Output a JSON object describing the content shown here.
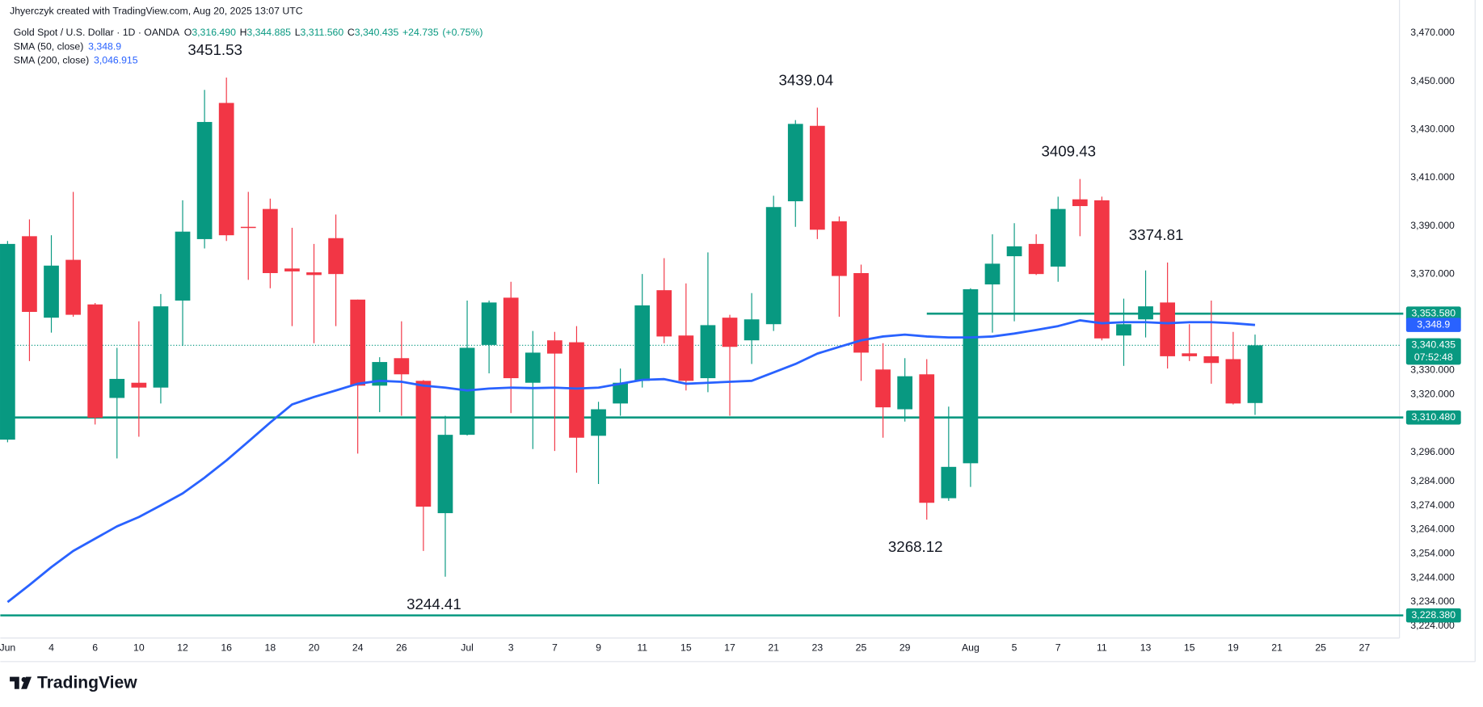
{
  "chart_data": {
    "type": "candlestick",
    "author_line": "Jhyerczyk created with TradingView.com, Aug 20, 2025 13:07 UTC",
    "title": "Gold Spot / U.S. Dollar · 1D · OANDA",
    "brand": "TradingView",
    "ohlc_legend": [
      {
        "key": "O",
        "value": 3316.49,
        "label": "3,316.490"
      },
      {
        "key": "H",
        "value": 3344.885,
        "label": "3,344.885"
      },
      {
        "key": "L",
        "value": 3311.56,
        "label": "3,311.560"
      },
      {
        "key": "C",
        "value": 3340.435,
        "label": "3,340.435"
      }
    ],
    "change": {
      "value": 24.735,
      "label": "+24.735"
    },
    "change_pct": {
      "value": 0.75,
      "label": "(+0.75%)"
    },
    "up_color": "#089981",
    "down_color": "#f23645",
    "categories": [
      "Jun",
      null,
      "4",
      null,
      "6",
      null,
      "10",
      null,
      "12",
      null,
      "16",
      null,
      "18",
      null,
      "20",
      null,
      "24",
      null,
      "26",
      null,
      null,
      "Jul",
      null,
      "3",
      null,
      "7",
      null,
      "9",
      null,
      "11",
      null,
      "15",
      null,
      "17",
      null,
      "21",
      null,
      "23",
      null,
      "25",
      null,
      "29",
      null,
      null,
      "Aug",
      null,
      "5",
      null,
      "7",
      null,
      "11",
      null,
      "13",
      null,
      "15",
      null,
      "19",
      null,
      "21",
      null,
      "25",
      null,
      "27",
      null
    ],
    "open": [
      3301.3,
      3385.7,
      3351.9,
      3375.9,
      3357.4,
      3318.6,
      3324.9,
      3322.9,
      3359,
      3384.5,
      3441,
      3389.6,
      3397,
      3372.3,
      3370.7,
      3384.9,
      3359.4,
      3323.7,
      3335.1,
      3325.7,
      3270.8,
      3303.3,
      3340.6,
      3360.2,
      3324.9,
      3342.5,
      3341.7,
      3302.9,
      3316.3,
      3325.7,
      3363.3,
      3344.5,
      3326.8,
      3351.9,
      3342.5,
      3349.2,
      3400.2,
      3431.5,
      3391.9,
      3370.4,
      3330.4,
      3313.9,
      3328.4,
      3277,
      3291.5,
      3365.7,
      3377.4,
      3382.5,
      3373.1,
      3401,
      3400.6,
      3344.5,
      3351.2,
      3358.2,
      3337.1,
      3335.9,
      3334.7,
      3316.49,
      null,
      null,
      null,
      null,
      null,
      null
    ],
    "high": [
      3383.7,
      3392.7,
      3386.1,
      3404.1,
      3358,
      3339.4,
      3350.4,
      3361.7,
      3400.6,
      3446.4,
      3451.53,
      3404.1,
      3401.3,
      3389.2,
      3382.5,
      3394.7,
      3359.4,
      3335.5,
      3350.4,
      3326,
      3311.2,
      3359,
      3359,
      3366.8,
      3346.4,
      3346,
      3348.4,
      3317,
      3330.8,
      3370,
      3376.6,
      3366.1,
      3379,
      3353.1,
      3362.1,
      3402.5,
      3433.9,
      3439.04,
      3393.9,
      3373.9,
      3341.3,
      3335.1,
      3334.7,
      3315,
      3364.1,
      3386.5,
      3391.1,
      3386.5,
      3402.1,
      3409.43,
      3402.1,
      3359.8,
      3371.5,
      3374.81,
      3349.2,
      3359,
      3346,
      3344.885,
      null,
      null,
      null,
      null,
      null,
      null
    ],
    "low": [
      3300.2,
      3333.9,
      3345.7,
      3352.3,
      3307.6,
      3293.5,
      3302.5,
      3316.3,
      3340.2,
      3380.6,
      3383.7,
      3367.6,
      3364.1,
      3348.4,
      3341.3,
      3348.4,
      3295.5,
      3312.7,
      3311.2,
      3255.1,
      3244.41,
      3303,
      3328.8,
      3312.3,
      3297.4,
      3296.6,
      3287.6,
      3282.9,
      3311.2,
      3322.9,
      3341.3,
      3321.7,
      3321,
      3311.2,
      3332.7,
      3346.4,
      3389.6,
      3384.5,
      3352.3,
      3325.7,
      3302.1,
      3308.8,
      3268.12,
      3275.9,
      3281.7,
      3345.7,
      3350.4,
      3369.6,
      3366.8,
      3385.7,
      3342.5,
      3331.9,
      3343.7,
      3330.8,
      3333.9,
      3324.5,
      3315.9,
      3311.56,
      null,
      null,
      null,
      null,
      null,
      null
    ],
    "close": [
      3382.5,
      3354.3,
      3373.5,
      3353.1,
      3310.4,
      3326.5,
      3322.9,
      3356.6,
      3387.6,
      3433.1,
      3386.1,
      3389.1,
      3370.4,
      3371.1,
      3369.6,
      3370,
      3323.7,
      3333.5,
      3328.4,
      3273.5,
      3303.3,
      3339.4,
      3358.2,
      3326.8,
      3337.4,
      3337,
      3302.1,
      3313.9,
      3324.9,
      3357,
      3344.1,
      3325.7,
      3348.8,
      3339.8,
      3351.2,
      3397.8,
      3432.3,
      3388.4,
      3369.2,
      3337.4,
      3314.7,
      3327.6,
      3275.1,
      3290,
      3363.7,
      3374.3,
      3381.5,
      3370,
      3397,
      3398.2,
      3343.3,
      3349.2,
      3356.6,
      3335.9,
      3335.9,
      3333.1,
      3316.3,
      3340.435,
      null,
      null,
      null,
      null,
      null,
      null
    ],
    "series": [
      {
        "name": "SMA (50, close)",
        "color": "#2962ff",
        "last": {
          "value": 3348.9,
          "label": "3,348.9"
        },
        "values": [
          3233.9,
          3241,
          3248.4,
          3255.1,
          3260.2,
          3265.3,
          3269.2,
          3274,
          3279,
          3285.5,
          3292.7,
          3300.5,
          3308.4,
          3315.9,
          3319,
          3321.7,
          3324.5,
          3325.7,
          3325.3,
          3323.7,
          3322.9,
          3321.7,
          3322.5,
          3322.9,
          3322.7,
          3322.9,
          3322.5,
          3322.9,
          3324.5,
          3326.1,
          3326.4,
          3324.5,
          3324.9,
          3325.3,
          3325.7,
          3329.2,
          3332.7,
          3337,
          3339.8,
          3342.5,
          3344.1,
          3344.9,
          3344.1,
          3343.7,
          3343.7,
          3344.1,
          3345.3,
          3346.8,
          3348.4,
          3350.8,
          3349.6,
          3350,
          3350,
          3349.6,
          3350,
          3350,
          3349.6,
          3348.9,
          null,
          null,
          null,
          null,
          null,
          null
        ]
      },
      {
        "name": "SMA (200, close)",
        "color": "#2962ff",
        "last": {
          "value": 3046.915,
          "label": "3,046.915"
        }
      }
    ],
    "levels": [
      {
        "value": 3353.58,
        "label": "3,353.580",
        "color": "#089981"
      },
      {
        "value": 3310.48,
        "label": "3,310.480",
        "color": "#089981"
      },
      {
        "value": 3228.38,
        "label": "3,228.380",
        "color": "#089981"
      }
    ],
    "last_price": {
      "value": 3340.435,
      "label": "3,340.435",
      "countdown": "07:52:48",
      "color": "#089981"
    },
    "annotations": [
      {
        "value": 3451.53,
        "at": "high"
      },
      {
        "value": 3439.04,
        "at": "high"
      },
      {
        "value": 3409.43,
        "at": "high"
      },
      {
        "value": 3374.81,
        "at": "high"
      },
      {
        "value": 3244.41,
        "at": "low"
      },
      {
        "value": 3268.12,
        "at": "low"
      }
    ],
    "ylim": [
      3219,
      3473.9
    ],
    "yticks": [
      {
        "value": 3470,
        "label": "3,470.000"
      },
      {
        "value": 3450,
        "label": "3,450.000"
      },
      {
        "value": 3430,
        "label": "3,430.000"
      },
      {
        "value": 3410,
        "label": "3,410.000"
      },
      {
        "value": 3390,
        "label": "3,390.000"
      },
      {
        "value": 3370,
        "label": "3,370.000"
      },
      {
        "value": 3330,
        "label": "3,330.000"
      },
      {
        "value": 3320,
        "label": "3,320.000"
      },
      {
        "value": 3296,
        "label": "3,296.000"
      },
      {
        "value": 3284,
        "label": "3,284.000"
      },
      {
        "value": 3274,
        "label": "3,274.000"
      },
      {
        "value": 3264,
        "label": "3,264.000"
      },
      {
        "value": 3254,
        "label": "3,254.000"
      },
      {
        "value": 3244,
        "label": "3,244.000"
      },
      {
        "value": 3234,
        "label": "3,234.000"
      },
      {
        "value": 3224,
        "label": "3,224.000"
      }
    ],
    "grid": false
  }
}
